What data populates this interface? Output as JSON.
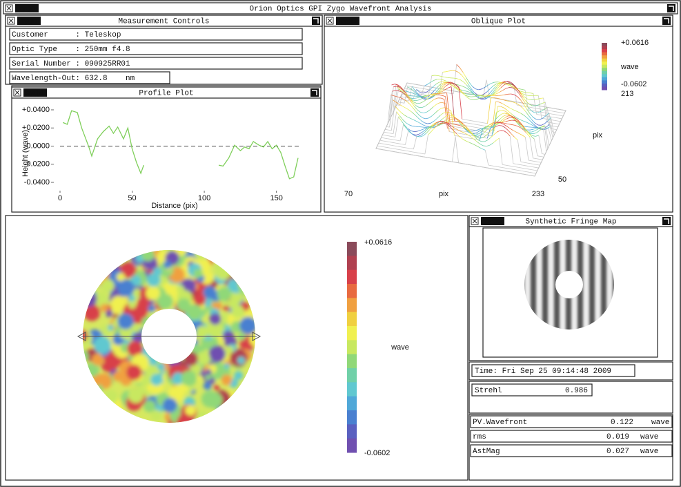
{
  "window": {
    "title": "Orion Optics GPI Zygo Wavefront Analysis",
    "logo": "zygo"
  },
  "measurement_controls": {
    "title": "Measurement Controls",
    "fields": [
      "Customer      : Teleskop",
      "Optic Type    : 250mm f4.8",
      "Serial Number : 090925RR01",
      "Wavelength-Out: 632.8    nm"
    ]
  },
  "profile_plot": {
    "title": "Profile Plot",
    "y_label": "Height (wave)",
    "x_label": "Distance (pix)",
    "color": "#7fcf5a",
    "x": [
      2,
      5,
      8,
      12,
      15,
      20,
      22,
      26,
      30,
      34,
      37,
      40,
      44,
      47,
      50,
      53,
      56,
      58,
      85,
      110,
      113,
      117,
      121,
      125,
      128,
      131,
      134,
      138,
      141,
      144,
      147,
      150,
      153,
      156,
      159,
      162,
      165
    ],
    "values": [
      0.026,
      0.024,
      0.039,
      0.037,
      0.02,
      -0.001,
      -0.011,
      0.008,
      0.016,
      0.022,
      0.014,
      0.021,
      0.008,
      0.02,
      -0.003,
      -0.018,
      -0.03,
      -0.021,
      null,
      -0.021,
      -0.022,
      -0.013,
      0.001,
      -0.005,
      -0.001,
      -0.003,
      0.005,
      0.001,
      -0.001,
      0.005,
      -0.003,
      0.001,
      -0.007,
      -0.022,
      -0.036,
      -0.034,
      -0.013
    ],
    "xlim": [
      0,
      165
    ],
    "ylim": [
      -0.04,
      0.04
    ],
    "xticks": [
      0,
      50,
      100,
      150
    ],
    "yticks": [
      {
        "value": 0.04,
        "label": "+0.0400"
      },
      {
        "value": 0.02,
        "label": "+0.0200"
      },
      {
        "value": 0,
        "label": "0.0000"
      },
      {
        "value": -0.02,
        "label": "-0.0200"
      },
      {
        "value": -0.04,
        "label": "-0.0400"
      }
    ]
  },
  "oblique_plot": {
    "title": "Oblique Plot",
    "colorbar": {
      "max": "+0.0616",
      "unit": "wave",
      "min": "-0.0602"
    },
    "extra_label": "213",
    "axis_labels": [
      "70",
      "pix",
      "233",
      "50",
      "pix"
    ]
  },
  "wavefront_map": {
    "colorbar": {
      "max": "+0.0616",
      "unit": "wave",
      "min": "-0.0602"
    }
  },
  "fringe_map": {
    "title": "Synthetic Fringe Map"
  },
  "time": "Time: Fri Sep 25 09:14:48 2009",
  "strehl": {
    "label": "Strehl",
    "value": "0.986"
  },
  "results": [
    {
      "label": "PV.Wavefront",
      "value": "0.122",
      "unit": "wave"
    },
    {
      "label": "rms",
      "value": "0.019",
      "unit": "wave"
    },
    {
      "label": "AstMag",
      "value": "0.027",
      "unit": "wave"
    }
  ]
}
